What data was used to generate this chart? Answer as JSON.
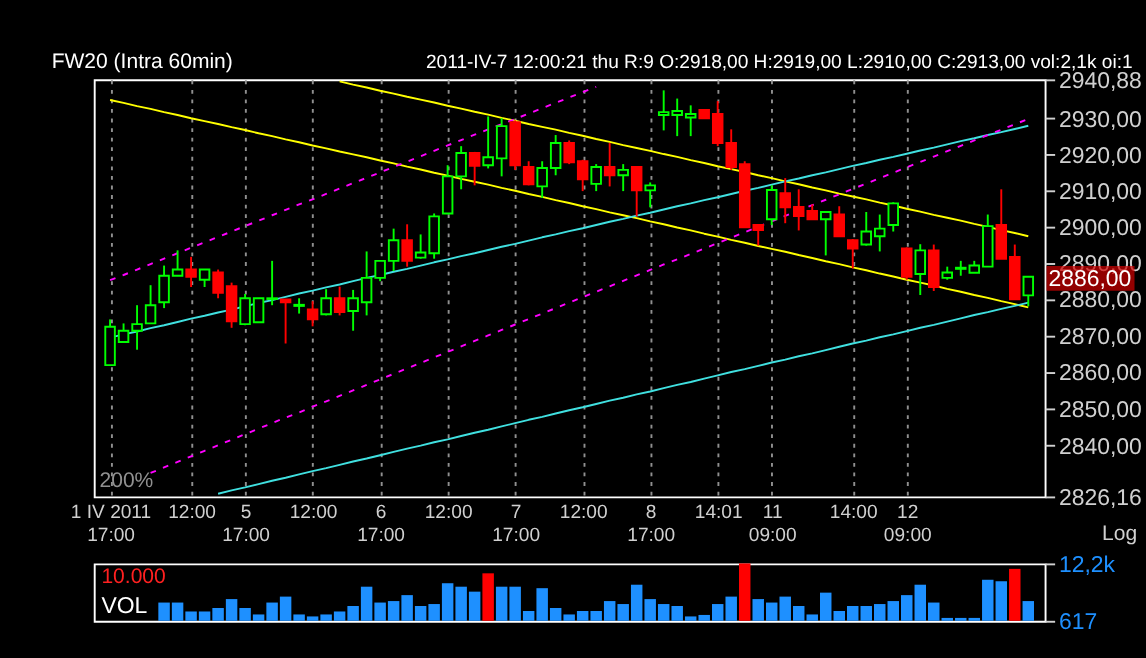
{
  "chart_data": [
    {
      "type": "candlestick",
      "title": "FW20 (Intra 60min)",
      "subtitle": "2011-IV-7   12:00:21 thu   R:9 O:2918,00 H:2919,00 L:2910,00 C:2913,00 vol:2,1k oi:1",
      "categories": [
        "1 IV 2011\n17:00",
        null,
        null,
        null,
        null,
        null,
        "12:00",
        null,
        null,
        null,
        "5\n17:00",
        null,
        null,
        null,
        null,
        "12:00",
        null,
        null,
        null,
        null,
        "6\n17:00",
        null,
        null,
        null,
        null,
        "12:00",
        null,
        null,
        null,
        null,
        "7\n17:00",
        null,
        null,
        null,
        null,
        "12:00",
        null,
        null,
        null,
        null,
        "8\n17:00",
        null,
        null,
        null,
        null,
        "14:01",
        null,
        null,
        null,
        "11\n09:00",
        null,
        null,
        null,
        null,
        null,
        "14:00",
        null,
        null,
        null,
        "12\n09:00",
        null,
        null,
        null,
        null,
        null,
        null,
        null,
        null,
        null
      ],
      "ohlc": [
        [
          2861.8,
          2874.3,
          2861.8,
          2872.3
        ],
        [
          2868.1,
          2873.2,
          2868.1,
          2871.2
        ],
        [
          2871.2,
          2878.2,
          2866.0,
          2873.0
        ],
        [
          2873.2,
          2883.7,
          2873.2,
          2878.2
        ],
        [
          2879.0,
          2889.1,
          2877.4,
          2886.3
        ],
        [
          2886.3,
          2893.3,
          2886.3,
          2888.0
        ],
        [
          2888.0,
          2891.5,
          2883.2,
          2886.0
        ],
        [
          2885.2,
          2888.0,
          2883.2,
          2888.0
        ],
        [
          2887.2,
          2888.0,
          2880.1,
          2881.6
        ],
        [
          2883.4,
          2884.4,
          2872.0,
          2873.8
        ],
        [
          2873.0,
          2881.3,
          2872.7,
          2880.1
        ],
        [
          2873.5,
          2880.1,
          2873.5,
          2880.1
        ],
        [
          2879.9,
          2890.4,
          2878.2,
          2880.1
        ],
        [
          2879.8,
          2879.8,
          2867.7,
          2879.0
        ],
        [
          2878.0,
          2880.1,
          2875.9,
          2878.3
        ],
        [
          2877.0,
          2879.3,
          2872.4,
          2874.3
        ],
        [
          2875.7,
          2882.6,
          2875.4,
          2880.1
        ],
        [
          2880.1,
          2883.3,
          2875.4,
          2876.3
        ],
        [
          2876.6,
          2882.4,
          2871.2,
          2880.1
        ],
        [
          2879.0,
          2893.0,
          2875.4,
          2885.7
        ],
        [
          2885.7,
          2890.4,
          2884.8,
          2890.4
        ],
        [
          2890.4,
          2899.3,
          2887.6,
          2896.1
        ],
        [
          2896.1,
          2900.5,
          2888.8,
          2890.4
        ],
        [
          2891.3,
          2897.7,
          2891.0,
          2892.7
        ],
        [
          2892.5,
          2903.5,
          2891.0,
          2902.7
        ],
        [
          2903.5,
          2916.9,
          2903.5,
          2913.8
        ],
        [
          2913.8,
          2922.2,
          2910.2,
          2920.3
        ],
        [
          2920.3,
          2920.6,
          2911.3,
          2916.7
        ],
        [
          2916.9,
          2930.5,
          2916.0,
          2919.1
        ],
        [
          2918.8,
          2930.0,
          2913.8,
          2927.8
        ],
        [
          2928.9,
          2929.4,
          2915.6,
          2916.9
        ],
        [
          2916.4,
          2918.0,
          2911.3,
          2911.6
        ],
        [
          2911.0,
          2918.0,
          2907.8,
          2916.1
        ],
        [
          2916.1,
          2925.3,
          2914.1,
          2923.1
        ],
        [
          2923.1,
          2923.8,
          2917.2,
          2917.7
        ],
        [
          2918.0,
          2918.4,
          2909.7,
          2913.0
        ],
        [
          2911.7,
          2917.2,
          2909.7,
          2916.4
        ],
        [
          2916.4,
          2923.1,
          2911.0,
          2914.1
        ],
        [
          2914.1,
          2917.2,
          2909.7,
          2915.6
        ],
        [
          2916.4,
          2916.4,
          2902.7,
          2909.9
        ],
        [
          2909.9,
          2912.1,
          2905.2,
          2911.3
        ],
        [
          2930.9,
          2937.8,
          2926.6,
          2931.7
        ],
        [
          2930.9,
          2935.5,
          2925.0,
          2932.0
        ],
        [
          2930.2,
          2933.6,
          2925.0,
          2931.2
        ],
        [
          2932.3,
          2932.5,
          2930.0,
          2930.0
        ],
        [
          2931.2,
          2934.8,
          2922.2,
          2923.1
        ],
        [
          2923.1,
          2926.9,
          2915.6,
          2916.4
        ],
        [
          2917.2,
          2918.0,
          2899.7,
          2899.7
        ],
        [
          2900.3,
          2900.3,
          2894.6,
          2898.9
        ],
        [
          2901.9,
          2911.3,
          2900.3,
          2910.0
        ],
        [
          2909.1,
          2913.3,
          2900.8,
          2905.2
        ],
        [
          2905.3,
          2910.2,
          2898.8,
          2902.8
        ],
        [
          2904.2,
          2906.0,
          2901.9,
          2901.9
        ],
        [
          2901.9,
          2903.9,
          2891.9,
          2903.9
        ],
        [
          2903.2,
          2905.5,
          2897.2,
          2897.2
        ],
        [
          2896.1,
          2896.4,
          2888.3,
          2893.8
        ],
        [
          2894.9,
          2903.9,
          2894.6,
          2898.5
        ],
        [
          2897.2,
          2903.2,
          2893.0,
          2899.3
        ],
        [
          2900.3,
          2906.6,
          2898.5,
          2906.3
        ],
        [
          2893.8,
          2894.1,
          2885.2,
          2886.0
        ],
        [
          2886.8,
          2895.0,
          2881.0,
          2893.3
        ],
        [
          2893.3,
          2894.9,
          2882.1,
          2883.2
        ],
        [
          2885.7,
          2888.8,
          2885.2,
          2887.2
        ],
        [
          2888.2,
          2890.4,
          2886.3,
          2888.5
        ],
        [
          2887.1,
          2890.4,
          2887.1,
          2889.1
        ],
        [
          2888.8,
          2903.2,
          2888.8,
          2900.0
        ],
        [
          2900.3,
          2910.2,
          2891.0,
          2891.0
        ],
        [
          2891.5,
          2894.9,
          2879.8,
          2879.8
        ],
        [
          2880.9,
          2886.0,
          2877.9,
          2886.0
        ]
      ],
      "colors": [
        "#00ff00",
        "#00ff00",
        "#00ff00",
        "#00ff00",
        "#00ff00",
        "#00ff00",
        "#ff0000",
        "#00ff00",
        "#ff0000",
        "#ff0000",
        "#00ff00",
        "#00ff00",
        "#00ff00",
        "#ff0000",
        "#00ff00",
        "#ff0000",
        "#00ff00",
        "#ff0000",
        "#00ff00",
        "#00ff00",
        "#00ff00",
        "#00ff00",
        "#ff0000",
        "#00ff00",
        "#00ff00",
        "#00ff00",
        "#00ff00",
        "#ff0000",
        "#00ff00",
        "#00ff00",
        "#ff0000",
        "#ff0000",
        "#00ff00",
        "#00ff00",
        "#ff0000",
        "#ff0000",
        "#00ff00",
        "#ff0000",
        "#00ff00",
        "#ff0000",
        "#00ff00",
        "#00ff00",
        "#00ff00",
        "#00ff00",
        "#ff0000",
        "#ff0000",
        "#ff0000",
        "#ff0000",
        "#ff0000",
        "#00ff00",
        "#ff0000",
        "#ff0000",
        "#ff0000",
        "#00ff00",
        "#ff0000",
        "#ff0000",
        "#00ff00",
        "#00ff00",
        "#00ff00",
        "#ff0000",
        "#00ff00",
        "#ff0000",
        "#00ff00",
        "#00ff00",
        "#00ff00",
        "#00ff00",
        "#ff0000",
        "#ff0000",
        "#00ff00"
      ],
      "series": [
        {
          "type": "line",
          "color": "#ffff00",
          "values": [
            null,
            null,
            null,
            null,
            null,
            null,
            null,
            null,
            null,
            null,
            null,
            null,
            null,
            null,
            null,
            null,
            null,
            2940.3,
            2939.4,
            2938.6,
            2937.7,
            2936.9,
            2936.0,
            2935.2,
            2934.4,
            2933.5,
            2932.7,
            2931.8,
            2931.0,
            2930.1,
            2929.3,
            2928.4,
            2927.6,
            2926.8,
            2925.9,
            2925.1,
            2924.2,
            2923.4,
            2922.5,
            2921.7,
            2920.9,
            2920.0,
            2919.2,
            2918.3,
            2917.5,
            2916.6,
            2915.8,
            2915.0,
            2914.1,
            2913.3,
            2912.4,
            2911.6,
            2910.7,
            2909.9,
            2909.0,
            2908.2,
            2907.4,
            2906.5,
            2905.7,
            2904.8,
            2904.0,
            2903.1,
            2902.3,
            2901.5,
            2900.6,
            2899.8,
            2898.9,
            2898.1,
            2897.2
          ]
        },
        {
          "type": "line",
          "color": "#ffff00",
          "values": [
            2935.1,
            2934.3,
            2933.4,
            2932.6,
            2931.7,
            2930.9,
            2930.0,
            2929.2,
            2928.4,
            2927.5,
            2926.7,
            2925.8,
            2925.0,
            2924.1,
            2923.3,
            2922.4,
            2921.6,
            2920.7,
            2919.9,
            2919.1,
            2918.2,
            2917.4,
            2916.5,
            2915.7,
            2914.8,
            2914.0,
            2913.1,
            2912.3,
            2911.5,
            2910.6,
            2909.8,
            2908.9,
            2908.1,
            2907.2,
            2906.4,
            2905.5,
            2904.7,
            2903.8,
            2903.0,
            2902.2,
            2901.3,
            2900.5,
            2899.6,
            2898.8,
            2897.9,
            2897.1,
            2896.2,
            2895.4,
            2894.5,
            2893.7,
            2892.9,
            2892.0,
            2891.2,
            2890.3,
            2889.5,
            2888.6,
            2887.8,
            2886.9,
            2886.1,
            2885.2,
            2884.4,
            2883.6,
            2882.7,
            2881.9,
            2881.0,
            2880.2,
            2879.3,
            2878.5,
            2877.6
          ]
        },
        {
          "type": "line",
          "color": "#40e0e0",
          "values": [
            2869.3,
            2870.2,
            2871.0,
            2871.9,
            2872.7,
            2873.6,
            2874.5,
            2875.3,
            2876.2,
            2877.0,
            2877.9,
            2878.8,
            2879.6,
            2880.5,
            2881.4,
            2882.2,
            2883.1,
            2883.9,
            2884.8,
            2885.7,
            2886.5,
            2887.4,
            2888.2,
            2889.1,
            2890.0,
            2890.8,
            2891.7,
            2892.5,
            2893.4,
            2894.3,
            2895.1,
            2896.0,
            2896.9,
            2897.7,
            2898.6,
            2899.4,
            2900.3,
            2901.2,
            2902.0,
            2902.9,
            2903.7,
            2904.6,
            2905.5,
            2906.3,
            2907.2,
            2908.0,
            2908.9,
            2909.8,
            2910.6,
            2911.5,
            2912.4,
            2913.2,
            2914.1,
            2914.9,
            2915.8,
            2916.7,
            2917.5,
            2918.4,
            2919.2,
            2920.1,
            2921.0,
            2921.8,
            2922.7,
            2923.6,
            2924.4,
            2925.3,
            2926.1,
            2927.0,
            2927.9
          ]
        },
        {
          "type": "line",
          "color": "#40e0e0",
          "values": [
            null,
            null,
            null,
            null,
            null,
            null,
            null,
            null,
            2826.9,
            2827.8,
            2828.6,
            2829.5,
            2830.4,
            2831.2,
            2832.1,
            2833.0,
            2833.8,
            2834.7,
            2835.6,
            2836.4,
            2837.3,
            2838.2,
            2839.1,
            2839.9,
            2840.8,
            2841.6,
            2842.5,
            2843.4,
            2844.2,
            2845.1,
            2846.0,
            2846.9,
            2847.7,
            2848.6,
            2849.5,
            2850.3,
            2851.2,
            2852.1,
            2852.9,
            2853.8,
            2854.6,
            2855.5,
            2856.4,
            2857.2,
            2858.1,
            2859.0,
            2859.9,
            2860.7,
            2861.6,
            2862.5,
            2863.3,
            2864.2,
            2865.0,
            2865.9,
            2866.8,
            2867.7,
            2868.5,
            2869.4,
            2870.2,
            2871.1,
            2872.0,
            2872.8,
            2873.7,
            2874.6,
            2875.5,
            2876.3,
            2877.2,
            2878.0,
            2878.9
          ]
        },
        {
          "type": "line",
          "color": "#ff00ff",
          "line_style": "dashed",
          "values": [
            2885.1,
            2886.5,
            2888.0,
            2889.5,
            2891.0,
            2892.5,
            2894.0,
            2895.5,
            2897.0,
            2898.5,
            2900.0,
            2901.5,
            2903.0,
            2904.5,
            2906.0,
            2907.4,
            2908.9,
            2910.4,
            2911.9,
            2913.4,
            2914.9,
            2916.4,
            2917.9,
            2919.4,
            2920.9,
            2922.4,
            2923.9,
            2925.4,
            2926.9,
            2928.3,
            2929.8,
            2931.3,
            2932.8,
            2934.3,
            2935.8,
            2937.3,
            2938.8,
            null,
            null,
            null,
            null,
            null,
            null,
            null,
            null,
            null,
            null,
            null,
            null,
            null,
            null,
            null,
            null,
            null,
            null,
            null,
            null,
            null,
            null,
            null,
            null,
            null,
            null,
            null,
            null,
            null,
            null,
            null,
            null
          ]
        },
        {
          "type": "line",
          "color": "#ff00ff",
          "line_style": "dashed",
          "values": [
            null,
            null,
            null,
            2832.5,
            2834.0,
            2835.5,
            2837.0,
            2838.5,
            2840.0,
            2841.5,
            2843.0,
            2844.5,
            2846.0,
            2847.5,
            2848.9,
            2850.5,
            2851.9,
            2853.4,
            2854.9,
            2856.4,
            2857.9,
            2859.4,
            2860.9,
            2862.4,
            2863.9,
            2865.4,
            2866.9,
            2868.4,
            2869.9,
            2871.4,
            2872.9,
            2874.4,
            2875.9,
            2877.4,
            2878.9,
            2880.4,
            2881.9,
            2883.4,
            2884.9,
            2886.4,
            2887.9,
            2889.4,
            2890.8,
            2892.3,
            2893.8,
            2895.3,
            2896.8,
            2898.3,
            2899.8,
            2901.3,
            2902.8,
            2904.3,
            2905.8,
            2907.3,
            2908.8,
            2910.3,
            2911.8,
            2913.3,
            2914.8,
            2916.3,
            2917.8,
            2919.3,
            2920.8,
            2922.3,
            2923.8,
            2925.3,
            2926.8,
            2928.3,
            2929.8
          ]
        }
      ],
      "ylim": [
        2826.16,
        2940.88
      ],
      "yticks": [
        {
          "value": 2826.16,
          "label": "2826,16"
        },
        {
          "value": 2840,
          "label": "2840,00"
        },
        {
          "value": 2850,
          "label": "2850,00"
        },
        {
          "value": 2860,
          "label": "2860,00"
        },
        {
          "value": 2870,
          "label": "2870,00"
        },
        {
          "value": 2880,
          "label": "2880,00"
        },
        {
          "value": 2890,
          "label": "2890,00"
        },
        {
          "value": 2900,
          "label": "2900,00"
        },
        {
          "value": 2910,
          "label": "2910,00"
        },
        {
          "value": 2920,
          "label": "2920,00"
        },
        {
          "value": 2930,
          "label": "2930,00"
        },
        {
          "value": 2940.88,
          "label": "2940,88"
        }
      ],
      "log": true,
      "grid": "x",
      "annotations": [
        "2886,00",
        "200%",
        "Log"
      ]
    },
    {
      "type": "bar",
      "title": "VOL",
      "categories": [
        null,
        null,
        null,
        null,
        null,
        null,
        null,
        null,
        null,
        null,
        null,
        null,
        null,
        null,
        null,
        null,
        null,
        null,
        null,
        null,
        null,
        null,
        null,
        null,
        null,
        null,
        null,
        null,
        null,
        null,
        null,
        null,
        null,
        null,
        null,
        null,
        null,
        null,
        null,
        null,
        null,
        null,
        null,
        null,
        null,
        null,
        null,
        null,
        null,
        null,
        null,
        null,
        null,
        null,
        null,
        null,
        null,
        null,
        null,
        null,
        null,
        null,
        null,
        null,
        null,
        null,
        null,
        null,
        null
      ],
      "values": [
        null,
        null,
        null,
        null,
        4300,
        4300,
        2500,
        2500,
        3200,
        5000,
        3200,
        1900,
        4300,
        5500,
        1900,
        1500,
        1900,
        2500,
        3600,
        7500,
        4300,
        4600,
        5800,
        3600,
        4000,
        8200,
        7500,
        6500,
        10200,
        7500,
        7500,
        2600,
        7200,
        3200,
        1900,
        2600,
        2600,
        4600,
        4000,
        7900,
        5000,
        4000,
        3600,
        1500,
        1800,
        4000,
        5500,
        12200,
        5000,
        4300,
        5500,
        3600,
        1900,
        6300,
        2600,
        3600,
        3600,
        4000,
        4600,
        5800,
        7900,
        4300,
        1200,
        1200,
        1200,
        8900,
        8600,
        11100,
        4600
      ],
      "colors": [
        null,
        null,
        null,
        null,
        "#1e90ff",
        "#1e90ff",
        "#1e90ff",
        "#1e90ff",
        "#1e90ff",
        "#1e90ff",
        "#1e90ff",
        "#1e90ff",
        "#1e90ff",
        "#1e90ff",
        "#1e90ff",
        "#1e90ff",
        "#1e90ff",
        "#1e90ff",
        "#1e90ff",
        "#1e90ff",
        "#1e90ff",
        "#1e90ff",
        "#1e90ff",
        "#1e90ff",
        "#1e90ff",
        "#1e90ff",
        "#1e90ff",
        "#1e90ff",
        "#ff0000",
        "#1e90ff",
        "#1e90ff",
        "#1e90ff",
        "#1e90ff",
        "#1e90ff",
        "#1e90ff",
        "#1e90ff",
        "#1e90ff",
        "#1e90ff",
        "#1e90ff",
        "#1e90ff",
        "#1e90ff",
        "#1e90ff",
        "#1e90ff",
        "#1e90ff",
        "#1e90ff",
        "#1e90ff",
        "#1e90ff",
        "#ff0000",
        "#1e90ff",
        "#1e90ff",
        "#1e90ff",
        "#1e90ff",
        "#1e90ff",
        "#1e90ff",
        "#1e90ff",
        "#1e90ff",
        "#1e90ff",
        "#1e90ff",
        "#1e90ff",
        "#1e90ff",
        "#1e90ff",
        "#1e90ff",
        "#1e90ff",
        "#1e90ff",
        "#1e90ff",
        "#1e90ff",
        "#1e90ff",
        "#ff0000",
        "#1e90ff"
      ],
      "ylim": [
        617,
        12200
      ],
      "yticks": [
        {
          "value": 617,
          "label": "617"
        },
        {
          "value": 12200,
          "label": "12,2k"
        }
      ],
      "tick_labels": "y",
      "annotations": [
        "10.000"
      ]
    }
  ]
}
